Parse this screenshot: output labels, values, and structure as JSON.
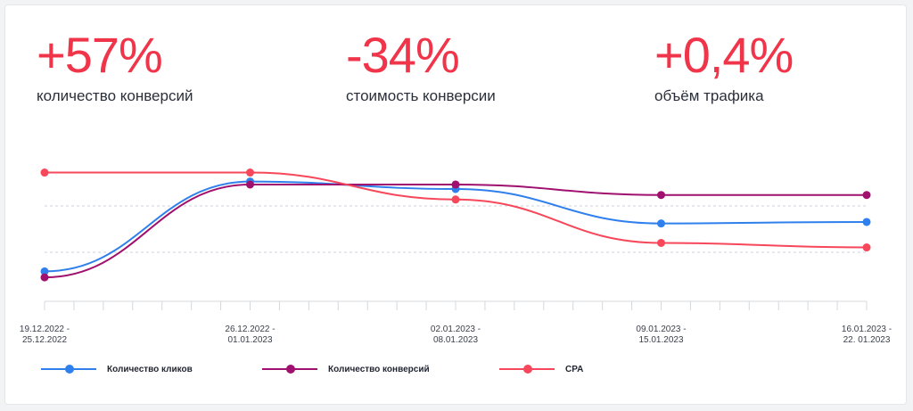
{
  "kpis": [
    {
      "value": "+57%",
      "label": "количество конверсий"
    },
    {
      "value": "-34%",
      "label": "стоимость конверсии"
    },
    {
      "value": "+0,4%",
      "label": "объём трафика"
    }
  ],
  "colors": {
    "accent": "#f0354a",
    "clicks": "#2f80ed",
    "conversions": "#a0106e",
    "cpa": "#f7475a"
  },
  "chart_data": {
    "type": "line",
    "x": [
      [
        "19.12.2022 -",
        "25.12.2022"
      ],
      [
        "26.12.2022 -",
        "01.01.2023"
      ],
      [
        "02.01.2023 -",
        "08.01.2023"
      ],
      [
        "09.01.2023 -",
        "15.01.2023"
      ],
      [
        "16.01.2023 -",
        "22. 01.2023"
      ]
    ],
    "ylim": [
      0,
      10
    ],
    "y_ticks_shown": false,
    "grid": "horizontal dashed",
    "legend_position": "bottom",
    "series": [
      {
        "name": "Количество кликов",
        "color": "#2f80ed",
        "values": [
          2.0,
          8.0,
          7.5,
          5.2,
          5.3
        ]
      },
      {
        "name": "Количество конверсий",
        "color": "#a0106e",
        "values": [
          1.6,
          7.8,
          7.8,
          7.1,
          7.1
        ]
      },
      {
        "name": "CPA",
        "color": "#f7475a",
        "values": [
          8.6,
          8.6,
          6.8,
          3.9,
          3.6
        ]
      }
    ]
  }
}
